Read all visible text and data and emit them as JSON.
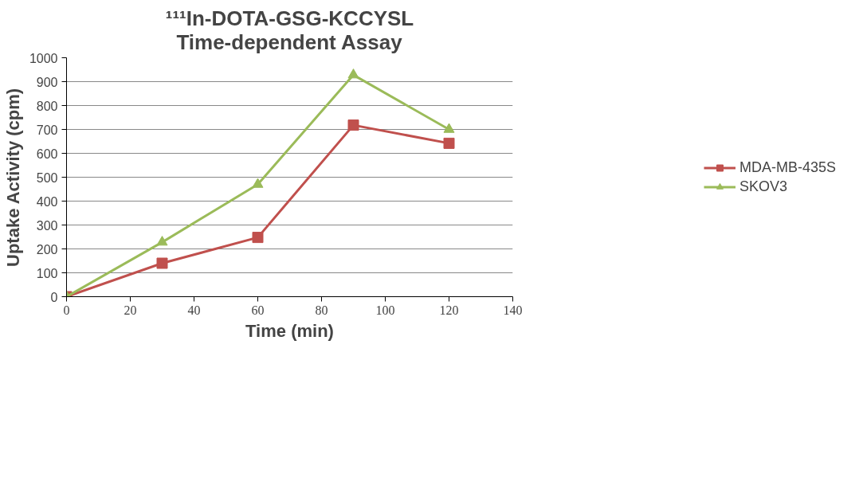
{
  "chart_data": {
    "type": "line",
    "title": "¹¹¹In-DOTA-GSG-KCCYSL\nTime-dependent Assay",
    "xlabel": "Time (min)",
    "ylabel": "Uptake Activity (cpm)",
    "x": [
      0,
      30,
      60,
      90,
      120
    ],
    "series": [
      {
        "name": "MDA-MB-435S",
        "color": "#c0504d",
        "marker": "square",
        "values": [
          0,
          140,
          248,
          718,
          642
        ]
      },
      {
        "name": "SKOV3",
        "color": "#9bbb59",
        "marker": "triangle",
        "values": [
          0,
          228,
          470,
          928,
          700
        ]
      }
    ],
    "xlim": [
      0,
      140
    ],
    "xticks": [
      0,
      20,
      40,
      60,
      80,
      100,
      120,
      140
    ],
    "ylim": [
      0,
      1000
    ],
    "yticks": [
      0,
      100,
      200,
      300,
      400,
      500,
      600,
      700,
      800,
      900,
      1000
    ],
    "grid": "y",
    "legend": "right",
    "line_style": "solid"
  }
}
